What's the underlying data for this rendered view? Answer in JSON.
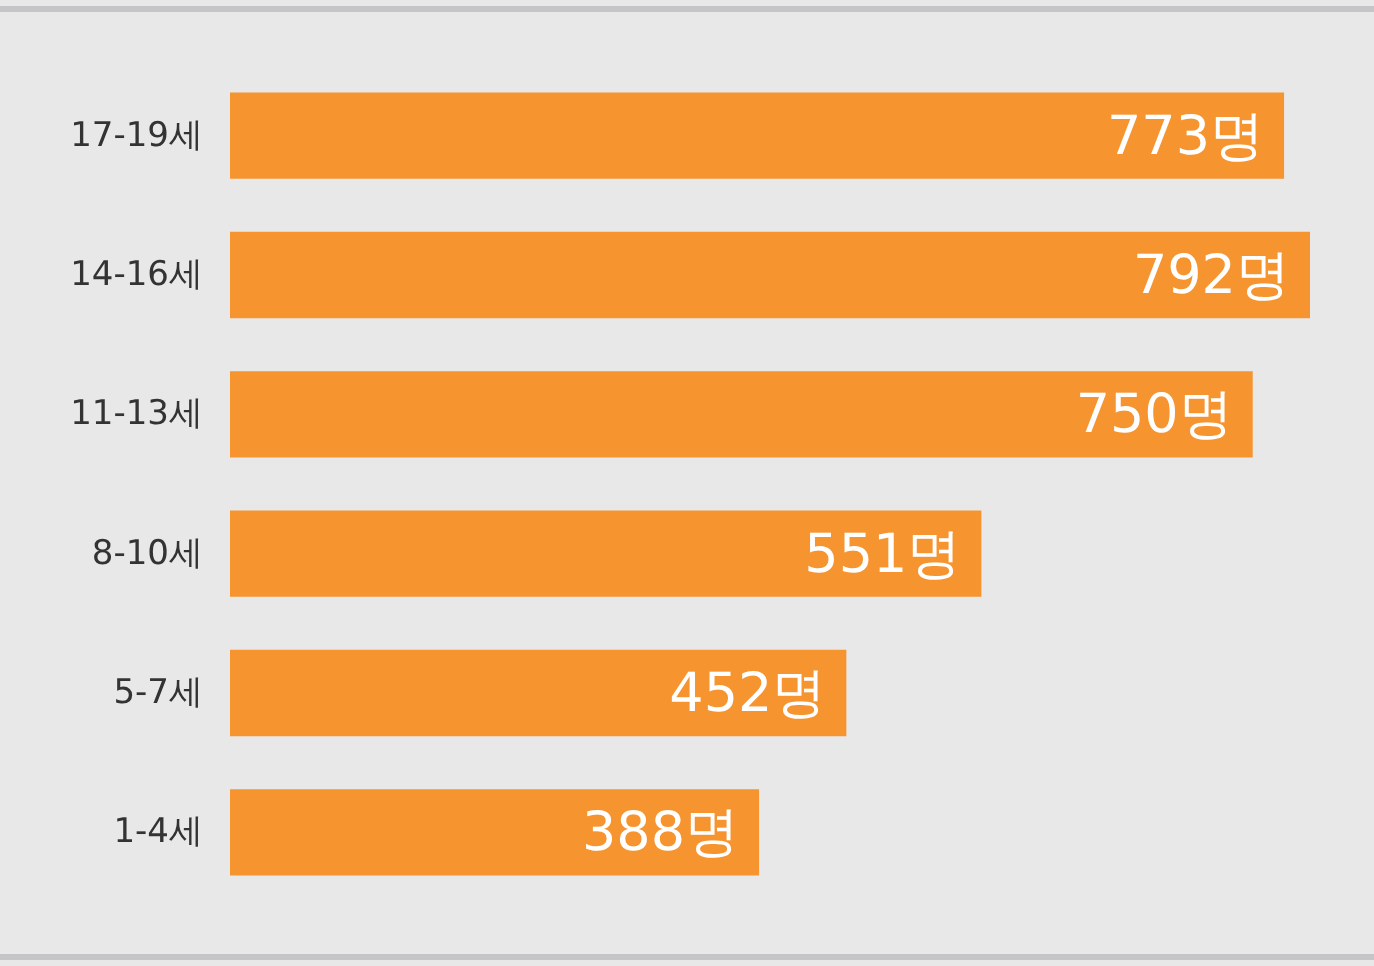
{
  "chart_data": {
    "type": "bar",
    "orientation": "horizontal",
    "categories": [
      "17-19세",
      "14-16세",
      "11-13세",
      "8-10세",
      "5-7세",
      "1-4세"
    ],
    "values": [
      773,
      792,
      750,
      551,
      452,
      388
    ],
    "value_labels": [
      "773명",
      "792명",
      "750명",
      "551명",
      "452명",
      "388명"
    ],
    "color": "#f6942f"
  }
}
